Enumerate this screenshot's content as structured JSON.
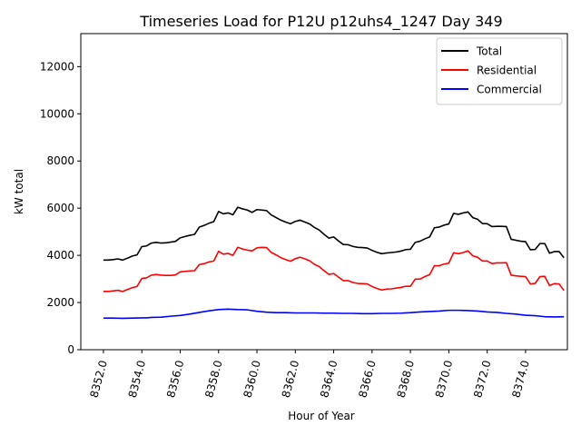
{
  "chart_data": {
    "type": "line",
    "title": "Timeseries Load for P12U p12uhs4_1247  Day 349",
    "xlabel": "Hour of Year",
    "ylabel": "kW total",
    "xlim": [
      8350.82,
      8376.18
    ],
    "ylim": [
      0,
      13400
    ],
    "x_ticks": [
      8352,
      8354,
      8356,
      8358,
      8360,
      8362,
      8364,
      8366,
      8368,
      8370,
      8372,
      8374
    ],
    "x_tick_labels": [
      "8352.0",
      "8354.0",
      "8356.0",
      "8358.0",
      "8360.0",
      "8362.0",
      "8364.0",
      "8366.0",
      "8368.0",
      "8370.0",
      "8372.0",
      "8374.0"
    ],
    "y_ticks": [
      0,
      2000,
      4000,
      6000,
      8000,
      10000,
      12000
    ],
    "y_tick_labels": [
      "0",
      "2000",
      "4000",
      "6000",
      "8000",
      "10000",
      "12000"
    ],
    "grid": false,
    "legend_position": "top-right",
    "series": [
      {
        "name": "Total",
        "color": "#000000",
        "points": [
          [
            8352.0,
            3800
          ],
          [
            8352.25,
            3800
          ],
          [
            8352.5,
            3820
          ],
          [
            8352.75,
            3850
          ],
          [
            8353.0,
            3800
          ],
          [
            8353.25,
            3880
          ],
          [
            8353.5,
            3970
          ],
          [
            8353.75,
            4020
          ],
          [
            8354.0,
            4370
          ],
          [
            8354.25,
            4400
          ],
          [
            8354.5,
            4520
          ],
          [
            8354.75,
            4550
          ],
          [
            8355.0,
            4520
          ],
          [
            8355.25,
            4530
          ],
          [
            8355.5,
            4560
          ],
          [
            8355.75,
            4590
          ],
          [
            8356.0,
            4740
          ],
          [
            8356.25,
            4800
          ],
          [
            8356.5,
            4850
          ],
          [
            8356.75,
            4890
          ],
          [
            8357.0,
            5200
          ],
          [
            8357.25,
            5270
          ],
          [
            8357.5,
            5360
          ],
          [
            8357.75,
            5430
          ],
          [
            8358.0,
            5860
          ],
          [
            8358.25,
            5760
          ],
          [
            8358.5,
            5800
          ],
          [
            8358.75,
            5720
          ],
          [
            8359.0,
            6040
          ],
          [
            8359.25,
            5970
          ],
          [
            8359.5,
            5920
          ],
          [
            8359.75,
            5820
          ],
          [
            8360.0,
            5940
          ],
          [
            8360.25,
            5920
          ],
          [
            8360.5,
            5900
          ],
          [
            8360.75,
            5710
          ],
          [
            8361.0,
            5600
          ],
          [
            8361.25,
            5490
          ],
          [
            8361.5,
            5410
          ],
          [
            8361.75,
            5340
          ],
          [
            8362.0,
            5440
          ],
          [
            8362.25,
            5490
          ],
          [
            8362.5,
            5410
          ],
          [
            8362.75,
            5330
          ],
          [
            8363.0,
            5180
          ],
          [
            8363.25,
            5070
          ],
          [
            8363.5,
            4890
          ],
          [
            8363.75,
            4730
          ],
          [
            8364.0,
            4780
          ],
          [
            8364.25,
            4610
          ],
          [
            8364.5,
            4460
          ],
          [
            8364.75,
            4450
          ],
          [
            8365.0,
            4380
          ],
          [
            8365.25,
            4340
          ],
          [
            8365.5,
            4330
          ],
          [
            8365.75,
            4310
          ],
          [
            8366.0,
            4210
          ],
          [
            8366.25,
            4130
          ],
          [
            8366.5,
            4070
          ],
          [
            8366.75,
            4100
          ],
          [
            8367.0,
            4120
          ],
          [
            8367.25,
            4140
          ],
          [
            8367.5,
            4180
          ],
          [
            8367.75,
            4240
          ],
          [
            8368.0,
            4260
          ],
          [
            8368.25,
            4550
          ],
          [
            8368.5,
            4600
          ],
          [
            8368.75,
            4700
          ],
          [
            8369.0,
            4780
          ],
          [
            8369.25,
            5170
          ],
          [
            8369.5,
            5200
          ],
          [
            8369.75,
            5280
          ],
          [
            8370.0,
            5330
          ],
          [
            8370.25,
            5780
          ],
          [
            8370.5,
            5740
          ],
          [
            8370.75,
            5800
          ],
          [
            8371.0,
            5840
          ],
          [
            8371.25,
            5600
          ],
          [
            8371.5,
            5530
          ],
          [
            8371.75,
            5350
          ],
          [
            8372.0,
            5340
          ],
          [
            8372.25,
            5220
          ],
          [
            8372.5,
            5230
          ],
          [
            8372.75,
            5230
          ],
          [
            8373.0,
            5220
          ],
          [
            8373.25,
            4680
          ],
          [
            8373.5,
            4640
          ],
          [
            8373.75,
            4600
          ],
          [
            8374.0,
            4580
          ],
          [
            8374.25,
            4240
          ],
          [
            8374.5,
            4250
          ],
          [
            8374.75,
            4500
          ],
          [
            8375.0,
            4500
          ],
          [
            8375.25,
            4090
          ],
          [
            8375.5,
            4160
          ],
          [
            8375.75,
            4160
          ],
          [
            8376.0,
            3900
          ]
        ]
      },
      {
        "name": "Residential",
        "color": "#ff0000",
        "points": [
          [
            8352.0,
            2470
          ],
          [
            8352.25,
            2470
          ],
          [
            8352.5,
            2490
          ],
          [
            8352.75,
            2520
          ],
          [
            8353.0,
            2470
          ],
          [
            8353.25,
            2550
          ],
          [
            8353.5,
            2630
          ],
          [
            8353.75,
            2680
          ],
          [
            8354.0,
            3020
          ],
          [
            8354.25,
            3050
          ],
          [
            8354.5,
            3160
          ],
          [
            8354.75,
            3190
          ],
          [
            8355.0,
            3160
          ],
          [
            8355.25,
            3150
          ],
          [
            8355.5,
            3150
          ],
          [
            8355.75,
            3170
          ],
          [
            8356.0,
            3300
          ],
          [
            8356.25,
            3320
          ],
          [
            8356.5,
            3340
          ],
          [
            8356.75,
            3350
          ],
          [
            8357.0,
            3610
          ],
          [
            8357.25,
            3650
          ],
          [
            8357.5,
            3720
          ],
          [
            8357.75,
            3760
          ],
          [
            8358.0,
            4170
          ],
          [
            8358.25,
            4050
          ],
          [
            8358.5,
            4080
          ],
          [
            8358.75,
            4000
          ],
          [
            8359.0,
            4340
          ],
          [
            8359.25,
            4270
          ],
          [
            8359.5,
            4220
          ],
          [
            8359.75,
            4190
          ],
          [
            8360.0,
            4320
          ],
          [
            8360.25,
            4340
          ],
          [
            8360.5,
            4330
          ],
          [
            8360.75,
            4120
          ],
          [
            8361.0,
            4020
          ],
          [
            8361.25,
            3900
          ],
          [
            8361.5,
            3820
          ],
          [
            8361.75,
            3750
          ],
          [
            8362.0,
            3860
          ],
          [
            8362.25,
            3920
          ],
          [
            8362.5,
            3850
          ],
          [
            8362.75,
            3770
          ],
          [
            8363.0,
            3620
          ],
          [
            8363.25,
            3520
          ],
          [
            8363.5,
            3350
          ],
          [
            8363.75,
            3190
          ],
          [
            8364.0,
            3230
          ],
          [
            8364.25,
            3080
          ],
          [
            8364.5,
            2930
          ],
          [
            8364.75,
            2930
          ],
          [
            8365.0,
            2850
          ],
          [
            8365.25,
            2810
          ],
          [
            8365.5,
            2800
          ],
          [
            8365.75,
            2790
          ],
          [
            8366.0,
            2680
          ],
          [
            8366.25,
            2600
          ],
          [
            8366.5,
            2530
          ],
          [
            8366.75,
            2570
          ],
          [
            8367.0,
            2580
          ],
          [
            8367.25,
            2610
          ],
          [
            8367.5,
            2640
          ],
          [
            8367.75,
            2690
          ],
          [
            8368.0,
            2690
          ],
          [
            8368.25,
            2990
          ],
          [
            8368.5,
            2990
          ],
          [
            8368.75,
            3100
          ],
          [
            8369.0,
            3180
          ],
          [
            8369.25,
            3560
          ],
          [
            8369.5,
            3560
          ],
          [
            8369.75,
            3630
          ],
          [
            8370.0,
            3670
          ],
          [
            8370.25,
            4110
          ],
          [
            8370.5,
            4070
          ],
          [
            8370.75,
            4120
          ],
          [
            8371.0,
            4190
          ],
          [
            8371.25,
            3980
          ],
          [
            8371.5,
            3920
          ],
          [
            8371.75,
            3760
          ],
          [
            8372.0,
            3760
          ],
          [
            8372.25,
            3650
          ],
          [
            8372.5,
            3680
          ],
          [
            8372.75,
            3680
          ],
          [
            8373.0,
            3690
          ],
          [
            8373.25,
            3160
          ],
          [
            8373.5,
            3130
          ],
          [
            8373.75,
            3110
          ],
          [
            8374.0,
            3100
          ],
          [
            8374.25,
            2790
          ],
          [
            8374.5,
            2810
          ],
          [
            8374.75,
            3100
          ],
          [
            8375.0,
            3110
          ],
          [
            8375.25,
            2720
          ],
          [
            8375.5,
            2800
          ],
          [
            8375.75,
            2790
          ],
          [
            8376.0,
            2510
          ]
        ]
      },
      {
        "name": "Commercial",
        "color": "#0000ff",
        "points": [
          [
            8352.0,
            1340
          ],
          [
            8352.5,
            1340
          ],
          [
            8353.0,
            1330
          ],
          [
            8353.5,
            1340
          ],
          [
            8354.0,
            1350
          ],
          [
            8354.25,
            1350
          ],
          [
            8354.5,
            1370
          ],
          [
            8355.0,
            1380
          ],
          [
            8355.5,
            1420
          ],
          [
            8356.0,
            1450
          ],
          [
            8356.5,
            1510
          ],
          [
            8357.0,
            1580
          ],
          [
            8357.5,
            1650
          ],
          [
            8358.0,
            1700
          ],
          [
            8358.5,
            1720
          ],
          [
            8359.0,
            1700
          ],
          [
            8359.5,
            1690
          ],
          [
            8360.0,
            1630
          ],
          [
            8360.5,
            1590
          ],
          [
            8361.0,
            1570
          ],
          [
            8361.5,
            1570
          ],
          [
            8362.0,
            1560
          ],
          [
            8362.5,
            1560
          ],
          [
            8363.0,
            1560
          ],
          [
            8363.5,
            1550
          ],
          [
            8364.0,
            1550
          ],
          [
            8364.5,
            1540
          ],
          [
            8365.0,
            1540
          ],
          [
            8365.5,
            1530
          ],
          [
            8366.0,
            1530
          ],
          [
            8366.5,
            1540
          ],
          [
            8367.0,
            1540
          ],
          [
            8367.5,
            1550
          ],
          [
            8368.0,
            1570
          ],
          [
            8368.5,
            1600
          ],
          [
            8369.0,
            1620
          ],
          [
            8369.5,
            1640
          ],
          [
            8370.0,
            1670
          ],
          [
            8370.5,
            1670
          ],
          [
            8371.0,
            1660
          ],
          [
            8371.5,
            1640
          ],
          [
            8372.0,
            1600
          ],
          [
            8372.5,
            1580
          ],
          [
            8373.0,
            1540
          ],
          [
            8373.5,
            1510
          ],
          [
            8374.0,
            1460
          ],
          [
            8374.5,
            1440
          ],
          [
            8375.0,
            1400
          ],
          [
            8375.5,
            1390
          ],
          [
            8376.0,
            1400
          ]
        ]
      }
    ]
  }
}
